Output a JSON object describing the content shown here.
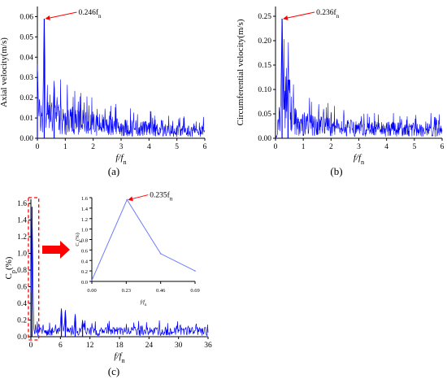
{
  "colors": {
    "series": "#0000ff",
    "annotation": "#ff0000",
    "axes": "#000000",
    "inset_line": "#6b7cff"
  },
  "chart_data": [
    {
      "id": "a",
      "type": "line",
      "panel_label": "(a)",
      "xlabel": "f/f_n",
      "ylabel": "Axial velocity(m/s)",
      "xlim": [
        0,
        6
      ],
      "ylim": [
        0,
        0.065
      ],
      "xticks": [
        "0",
        "1",
        "2",
        "3",
        "4",
        "5",
        "6"
      ],
      "yticks": [
        "0.00",
        "0.01",
        "0.02",
        "0.03",
        "0.04",
        "0.05",
        "0.06"
      ],
      "grid": false,
      "annotation": {
        "text": "0.246f_n",
        "x": 0.246,
        "y": 0.059
      },
      "series": [
        {
          "peaks": [
            {
              "x": 0.0,
              "y": 0.033
            },
            {
              "x": 0.246,
              "y": 0.059
            },
            {
              "x": 0.6,
              "y": 0.025
            }
          ],
          "envelope": [
            [
              0.0,
              0.012
            ],
            [
              0.3,
              0.012
            ],
            [
              1.0,
              0.01
            ],
            [
              2.0,
              0.008
            ],
            [
              3.0,
              0.006
            ],
            [
              4.0,
              0.005
            ],
            [
              5.0,
              0.004
            ],
            [
              6.0,
              0.004
            ]
          ]
        }
      ]
    },
    {
      "id": "b",
      "type": "line",
      "panel_label": "(b)",
      "xlabel": "f/f_n",
      "ylabel": "Circumferential velocity(m/s)",
      "xlim": [
        0,
        6
      ],
      "ylim": [
        0,
        0.27
      ],
      "xticks": [
        "0",
        "1",
        "2",
        "3",
        "4",
        "5",
        "6"
      ],
      "yticks": [
        "0.00",
        "0.05",
        "0.10",
        "0.15",
        "0.20",
        "0.25"
      ],
      "grid": false,
      "annotation": {
        "text": "0.236f_n",
        "x": 0.236,
        "y": 0.245
      },
      "series": [
        {
          "peaks": [
            {
              "x": 0.236,
              "y": 0.245
            },
            {
              "x": 0.45,
              "y": 0.12
            }
          ],
          "envelope": [
            [
              0.0,
              0.0
            ],
            [
              0.15,
              0.05
            ],
            [
              0.4,
              0.09
            ],
            [
              0.8,
              0.035
            ],
            [
              1.5,
              0.028
            ],
            [
              3.0,
              0.022
            ],
            [
              4.5,
              0.02
            ],
            [
              6.0,
              0.018
            ]
          ]
        }
      ]
    },
    {
      "id": "c",
      "type": "line",
      "panel_label": "(c)",
      "xlabel": "f/f_n",
      "ylabel": "C_p(%)",
      "xlim": [
        0,
        36
      ],
      "ylim": [
        0,
        1.65
      ],
      "xticks": [
        "0",
        "6",
        "12",
        "18",
        "24",
        "30",
        "36"
      ],
      "yticks": [
        "0.0",
        "0.2",
        "0.4",
        "0.6",
        "0.8",
        "1.0",
        "1.2",
        "1.4",
        "1.6"
      ],
      "grid": false,
      "series": [
        {
          "peaks": [
            {
              "x": 0.235,
              "y": 1.56
            },
            {
              "x": 6.2,
              "y": 0.32
            },
            {
              "x": 7.0,
              "y": 0.3
            },
            {
              "x": 9.0,
              "y": 0.25
            },
            {
              "x": 10.5,
              "y": 0.18
            }
          ],
          "baseline": 0.07
        }
      ],
      "inset": {
        "xlabel": "f/f_n",
        "ylabel": "C_p(%)",
        "xlim": [
          0,
          0.69
        ],
        "ylim": [
          0,
          1.6
        ],
        "xticks": [
          "0.00",
          "0.23",
          "0.46",
          "0.69"
        ],
        "yticks": [
          "0.0",
          "0.2",
          "0.4",
          "0.6",
          "0.8",
          "1.0",
          "1.2",
          "1.4",
          "1.6"
        ],
        "x": [
          0.0,
          0.235,
          0.46,
          0.69
        ],
        "y": [
          0.02,
          1.56,
          0.53,
          0.2
        ],
        "annotation": {
          "text": "0.235f_n",
          "x": 0.235,
          "y": 1.56
        }
      }
    }
  ]
}
